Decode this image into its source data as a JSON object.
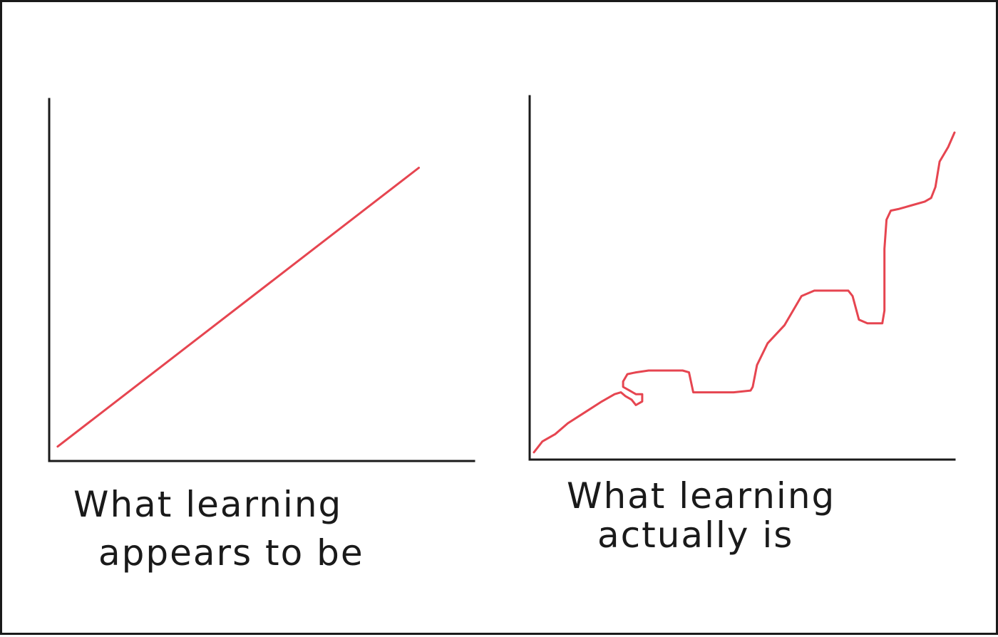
{
  "style": {
    "line_color": "#e64550",
    "axis_color": "#1a1a1a",
    "background": "#ffffff"
  },
  "chart_data": [
    {
      "type": "line",
      "caption": [
        "What learning",
        "appears to be"
      ],
      "title": "",
      "xlabel": "",
      "ylabel": "",
      "grid": false,
      "xlim": [
        0,
        100
      ],
      "ylim": [
        0,
        100
      ],
      "series": [
        {
          "x": [
            2,
            87
          ],
          "y": [
            4,
            81
          ]
        }
      ]
    },
    {
      "type": "line",
      "caption": [
        "What learning",
        "actually is"
      ],
      "title": "",
      "xlabel": "",
      "ylabel": "",
      "grid": false,
      "xlim": [
        0,
        100
      ],
      "ylim": [
        0,
        100
      ],
      "series": [
        {
          "x": [
            1,
            3,
            6,
            9,
            13,
            17,
            20,
            21.5,
            22.5,
            24,
            25,
            26.5,
            26.5,
            25,
            23.5,
            22,
            22,
            23,
            25,
            28,
            32,
            36,
            37.5,
            38.5,
            40,
            44,
            48,
            52,
            52.5,
            53.5,
            56,
            60,
            64,
            67,
            70,
            72.5,
            74,
            74.5,
            75,
            76,
            77.5,
            79.5,
            81.5,
            82,
            83,
            83.5,
            83.5,
            84,
            85,
            87,
            90,
            93,
            94.5,
            95.5,
            96.5,
            98.5,
            100
          ],
          "y": [
            2,
            5,
            7,
            10,
            13,
            16,
            18,
            18.5,
            17.5,
            16.5,
            15,
            16,
            18,
            18,
            19,
            20,
            21.5,
            23.5,
            24,
            24.5,
            24.5,
            24.5,
            24,
            18.5,
            18.5,
            18.5,
            18.5,
            19,
            20,
            26,
            32,
            37,
            45,
            46.5,
            46.5,
            46.5,
            46.5,
            46.5,
            46.5,
            45,
            38.5,
            37.5,
            37.5,
            37.5,
            37.5,
            41,
            58,
            66,
            68.5,
            69,
            70,
            71,
            72,
            75,
            82,
            86,
            90
          ]
        }
      ]
    }
  ]
}
